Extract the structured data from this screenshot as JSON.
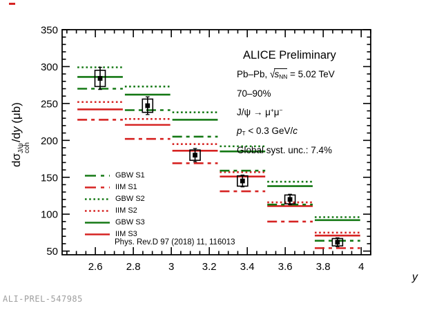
{
  "watermark": "ALI-PREL-547985",
  "annotations": {
    "title": "ALICE Preliminary",
    "system": {
      "prefix": "Pb–Pb, ",
      "radical": "√",
      "s": "s",
      "s_sub": "NN",
      "value": " = 5.02 TeV"
    },
    "centrality": "70–90%",
    "decay": {
      "text": "J/ψ → μ",
      "sup1": "+",
      "text2": "μ",
      "sup2": "−"
    },
    "pt": {
      "p": "p",
      "sub": "T",
      "mid": " < 0.3 GeV/",
      "c": "c"
    },
    "syst": "Global syst. unc.: 7.4%",
    "reference": "Phys. Rev.D 97 (2018) 11, 116013"
  },
  "axes": {
    "y_label_parts": {
      "pre": "d",
      "sigma": "σ",
      "sup": "J/ψ",
      "sub": "coh",
      "mid": "/d",
      "var": "y",
      "units": " (μb)"
    }
  },
  "chart_data": {
    "type": "line",
    "xlabel": "y",
    "ylabel": "dσ^{J/ψ}_{coh}/dy (μb)",
    "xlim": [
      2.425,
      4.05
    ],
    "ylim": [
      45,
      350
    ],
    "x_ticks": [
      2.6,
      2.8,
      3,
      3.2,
      3.4,
      3.6,
      3.8,
      4
    ],
    "x_minor_step": 0.05,
    "y_ticks": [
      50,
      100,
      150,
      200,
      250,
      300,
      350
    ],
    "y_minor_step": 10,
    "grid": false,
    "legend_position": "lower-left",
    "bin_edges": [
      2.5,
      2.75,
      3.0,
      3.25,
      3.5,
      3.75,
      4.0
    ],
    "series": [
      {
        "name": "GBW S1",
        "color": "#147814",
        "style": "dashed",
        "values": [
          270,
          241,
          205,
          159,
          113,
          64
        ]
      },
      {
        "name": "IIM S1",
        "color": "#d62322",
        "style": "dashed",
        "values": [
          228,
          202,
          169,
          131,
          90,
          54
        ]
      },
      {
        "name": "GBW S2",
        "color": "#147814",
        "style": "dotted",
        "values": [
          299,
          273,
          238,
          192,
          144,
          96
        ]
      },
      {
        "name": "IIM S2",
        "color": "#d62322",
        "style": "dotted",
        "values": [
          252,
          229,
          195,
          157,
          116,
          75
        ]
      },
      {
        "name": "GBW S3",
        "color": "#147814",
        "style": "solid",
        "values": [
          286,
          262,
          228,
          185,
          138,
          92
        ]
      },
      {
        "name": "IIM S3",
        "color": "#d62322",
        "style": "solid",
        "values": [
          242,
          221,
          186,
          151,
          111,
          71
        ]
      }
    ],
    "data_points": {
      "name": "ALICE measured points",
      "marker": "filled-square-with-syst-box",
      "x": [
        2.625,
        2.875,
        3.125,
        3.375,
        3.625,
        3.875
      ],
      "y": [
        284,
        247,
        180,
        145,
        120,
        62
      ],
      "stat_err": [
        15,
        12,
        9,
        8,
        7,
        6
      ],
      "syst_err": [
        11,
        9,
        7,
        7,
        6,
        5
      ]
    }
  }
}
